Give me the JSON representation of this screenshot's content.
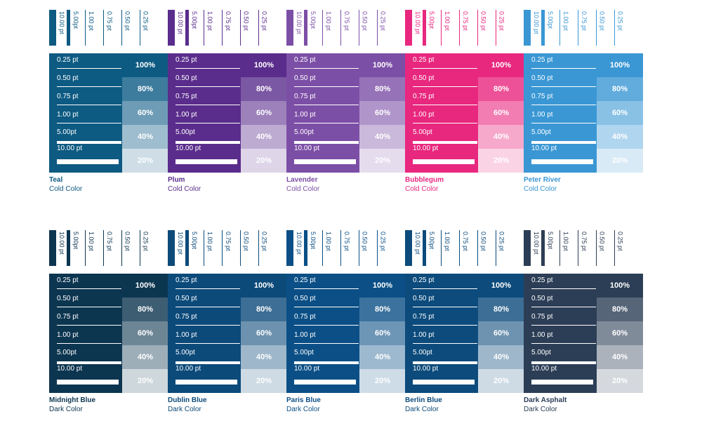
{
  "thickness_labels": [
    "10.00 pt",
    "5.00pt",
    "1.00 pt",
    "0.75 pt",
    "0.50 pt",
    "0.25 pt"
  ],
  "line_labels": [
    "0.25 pt",
    "0.50 pt",
    "0.75 pt",
    "1.00 pt",
    "5.00pt",
    "10.00 pt"
  ],
  "tint_labels": [
    "100%",
    "80%",
    "60%",
    "40%",
    "20%"
  ],
  "swatches": [
    {
      "name": "Teal",
      "category": "Cold Color",
      "color": "#0d5a82",
      "label_color": "#0d5a82",
      "tints": [
        "#0d5a82",
        "#3e7c9e",
        "#6e9cb6",
        "#9ebdce",
        "#cfdee6"
      ]
    },
    {
      "name": "Plum",
      "category": "Cold Color",
      "color": "#5a2d8c",
      "label_color": "#5a2d8c",
      "tints": [
        "#5a2d8c",
        "#7b58a3",
        "#9c81ba",
        "#bdabd1",
        "#ded5e8"
      ]
    },
    {
      "name": "Lavender",
      "category": "Cold Color",
      "color": "#7c4fa6",
      "label_color": "#7c4fa6",
      "tints": [
        "#7c4fa6",
        "#9672b8",
        "#b095ca",
        "#cbb9db",
        "#e5dced"
      ]
    },
    {
      "name": "Bubblegum",
      "category": "Cold Color",
      "color": "#e8277e",
      "label_color": "#e8277e",
      "tints": [
        "#e8277e",
        "#ed5298",
        "#f17db2",
        "#f6a9cb",
        "#fad4e5"
      ]
    },
    {
      "name": "Peter River",
      "category": "Cold Color",
      "color": "#3a97d4",
      "label_color": "#3a97d4",
      "tints": [
        "#3a97d4",
        "#61acdd",
        "#89c1e5",
        "#b0d5ee",
        "#d8eaf6"
      ]
    },
    {
      "name": "Midnight Blue",
      "category": "Dark Color",
      "color": "#0c3550",
      "label_color": "#0c3550",
      "tints": [
        "#0c3550",
        "#3d5d73",
        "#6d8696",
        "#9eaeb9",
        "#ced7dc"
      ]
    },
    {
      "name": "Dublin Blue",
      "category": "Dark Color",
      "color": "#0c4a7a",
      "label_color": "#0c4a7a",
      "tints": [
        "#0c4a7a",
        "#3d6e95",
        "#6d92af",
        "#9eb7ca",
        "#cedbe4"
      ]
    },
    {
      "name": "Paris Blue",
      "category": "Dark Color",
      "color": "#0b4f86",
      "label_color": "#0b4f86",
      "tints": [
        "#0b4f86",
        "#3c729e",
        "#6d95b6",
        "#9db9cf",
        "#cedce7"
      ]
    },
    {
      "name": "Berlin Blue",
      "category": "Dark Color",
      "color": "#0c4b7c",
      "label_color": "#0c4b7c",
      "tints": [
        "#0c4b7c",
        "#3d6f96",
        "#6d93b0",
        "#9eb7cb",
        "#cedbe5"
      ]
    },
    {
      "name": "Dark Asphalt",
      "category": "Dark Color",
      "color": "#2c3e56",
      "label_color": "#2c3e56",
      "tints": [
        "#2c3e56",
        "#566578",
        "#808b9a",
        "#abb2bb",
        "#d5d8dd"
      ]
    }
  ]
}
